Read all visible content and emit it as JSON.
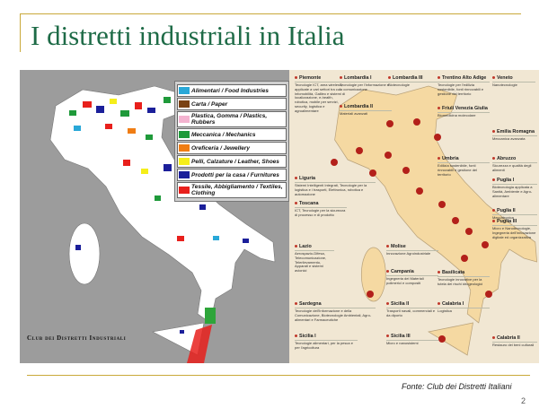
{
  "slide": {
    "title": "I distretti industriali in Italia",
    "source": "Fonte: Club dei Distretti Italiani",
    "page_number": "2"
  },
  "left_map": {
    "logo_text": "Club dei Distretti Industriali",
    "legend": [
      {
        "label": "Alimentari / Food Industries",
        "color": "#29a8d8"
      },
      {
        "label": "Carta / Paper",
        "color": "#7a4214"
      },
      {
        "label": "Plastica, Gomma / Plastics, Rubbers",
        "color": "#f4b3d0"
      },
      {
        "label": "Meccanica / Mechanics",
        "color": "#1f9a3a"
      },
      {
        "label": "Oreficeria / Jewellery",
        "color": "#f07d14"
      },
      {
        "label": "Pelli, Calzature / Leather, Shoes",
        "color": "#f5ee1a"
      },
      {
        "label": "Prodotti per la casa / Furnitures",
        "color": "#1b1f9a"
      },
      {
        "label": "Tessile, Abbigliamento / Textiles, Clothing",
        "color": "#e8201c"
      }
    ]
  },
  "right_map": {
    "pin_color": "#b3201a",
    "regions": [
      {
        "name": "Piemonte",
        "desc": "Tecnologie ICT, area wireless, applicate a vari settori tra cui infomobilità, Galileo e sistemi di localizzazione, e-health, robotica, mobile per servizi, security, logistica e agroalimentare"
      },
      {
        "name": "Lombardia I",
        "desc": "Tecnologie per l'informazione e la comunicazione"
      },
      {
        "name": "Lombardia III",
        "desc": "Biotecnologie"
      },
      {
        "name": "Trentino Alto Adige",
        "desc": "Tecnologie per l'edilizia sostenibile, fonti rinnovabili e gestione del territorio"
      },
      {
        "name": "Veneto",
        "desc": "Nanotecnologie"
      },
      {
        "name": "Lombardia II",
        "desc": "Materiali avanzati"
      },
      {
        "name": "Friuli Venezia Giulia",
        "desc": "Biomedicina molecolare"
      },
      {
        "name": "Emilia Romagna",
        "desc": "Meccanica avanzata"
      },
      {
        "name": "Umbria",
        "desc": "Edilizia sostenibile, fonti rinnovabili e gestione del territorio"
      },
      {
        "name": "Abruzzo",
        "desc": "Sicurezza e qualità degli alimenti"
      },
      {
        "name": "Liguria",
        "desc": "Sistemi Intelligenti Integrati, Tecnologie per la logistica e i trasporti, Elettronica, robotica e automazione"
      },
      {
        "name": "Puglia I",
        "desc": "Biotecnologia applicata a Sanità, Ambiente e Agro-alimentare"
      },
      {
        "name": "Toscana",
        "desc": "ICT, Tecnologie per la sicurezza di processo e di prodotto"
      },
      {
        "name": "Puglia II",
        "desc": "Meccatronica"
      },
      {
        "name": "Puglia III",
        "desc": "Micro e Nanotecnologie, Ingegneria dell'innovazione digitale ed organizzativa"
      },
      {
        "name": "Lazio",
        "desc": "Aerospazio-Difesa, Telecomunicazione, Telerilevamento, Apparati e sistemi avionici"
      },
      {
        "name": "Molise",
        "desc": "Innovazione Agroindustriale"
      },
      {
        "name": "Campania",
        "desc": "Ingegneria dei Materiali polimerici e compositi"
      },
      {
        "name": "Basilicata",
        "desc": "Tecnologie innovative per la tutela dei rischi idrogeologici"
      },
      {
        "name": "Sardegna",
        "desc": "Tecnologie dell'Informazione e della Comunicazione, Biotecnologie Ambientali, Agro-alimentari e Farmaceutiche"
      },
      {
        "name": "Sicilia II",
        "desc": "Trasporti navali, commerciali e da diporto"
      },
      {
        "name": "Calabria I",
        "desc": "Logistica"
      },
      {
        "name": "Sicilia I",
        "desc": "Tecnologie alimentari, per la pesca e per l'agricoltura"
      },
      {
        "name": "Sicilia III",
        "desc": "Micro e nanosistemi"
      },
      {
        "name": "Calabria II",
        "desc": "Restauro dei beni culturali"
      }
    ]
  }
}
